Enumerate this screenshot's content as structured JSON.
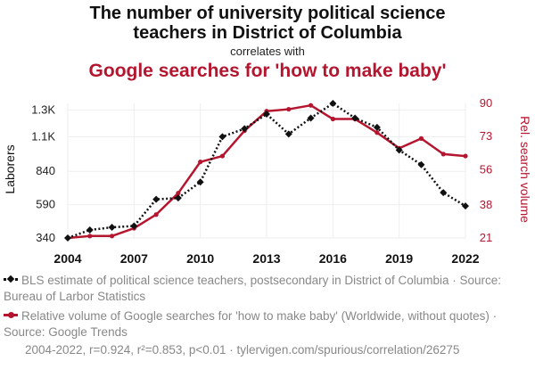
{
  "header": {
    "title_line1": "The number of university political science",
    "title_line2": "teachers in District of Columbia",
    "correlates": "correlates with",
    "title_line3": "Google searches for 'how to make baby'"
  },
  "chart_data": {
    "type": "line",
    "x": [
      2004,
      2005,
      2006,
      2007,
      2008,
      2009,
      2010,
      2011,
      2012,
      2013,
      2014,
      2015,
      2016,
      2017,
      2018,
      2019,
      2020,
      2021,
      2022
    ],
    "x_ticks": [
      2004,
      2007,
      2010,
      2013,
      2016,
      2019,
      2022
    ],
    "series": [
      {
        "name": "BLS estimate of political science teachers, postsecondary in District of Columbia",
        "axis": "left",
        "color": "#111111",
        "style": "dotted",
        "marker": "diamond",
        "values": [
          340,
          400,
          420,
          430,
          630,
          640,
          760,
          1100,
          1160,
          1270,
          1120,
          1240,
          1350,
          1240,
          1170,
          1000,
          890,
          680,
          580
        ]
      },
      {
        "name": "Relative volume of Google searches for 'how to make baby' (Worldwide, without quotes)",
        "axis": "right",
        "color": "#b5162f",
        "style": "solid",
        "marker": "circle",
        "values": [
          21,
          22,
          22,
          26,
          33,
          44,
          60,
          63,
          76,
          86,
          87,
          89,
          82,
          82,
          75,
          67,
          72,
          64,
          63
        ]
      }
    ],
    "left_axis": {
      "label": "Laborers",
      "ticks": [
        340,
        590,
        840,
        1100,
        1300
      ],
      "tick_labels": [
        "340",
        "590",
        "840",
        "1.1K",
        "1.3K"
      ],
      "range": [
        340,
        1350
      ]
    },
    "right_axis": {
      "label": "Rel. search volume",
      "ticks": [
        21,
        38,
        56,
        73,
        90
      ],
      "tick_labels": [
        "21",
        "38",
        "56",
        "73",
        "90"
      ],
      "range": [
        21,
        90
      ]
    }
  },
  "legend": {
    "item1_text": "BLS estimate of political science teachers, postsecondary in District of Columbia · Source: Bureau of Larbor Statistics",
    "item2_text": "Relative volume of Google searches for 'how to make baby' (Worldwide, without quotes) · Source: Google Trends"
  },
  "footer": {
    "stats": "2004-2022, r=0.924, r²=0.853, p<0.01 · tylervigen.com/spurious/correlation/26275"
  }
}
